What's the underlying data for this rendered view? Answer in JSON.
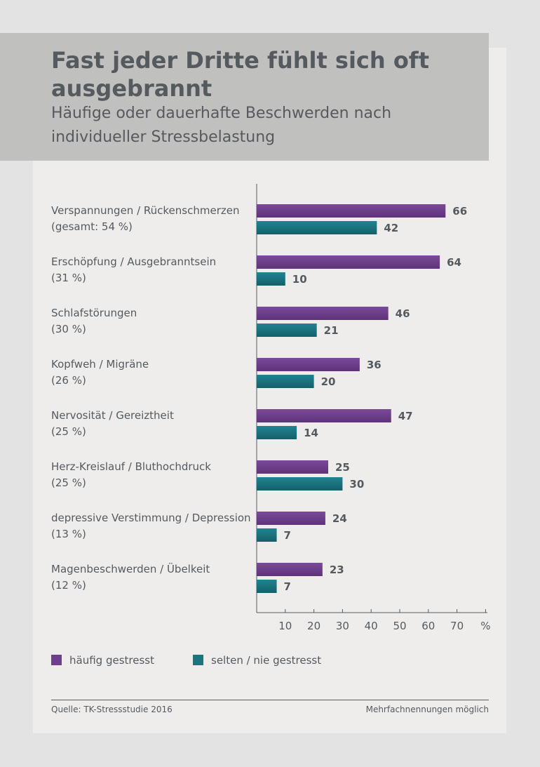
{
  "title": "Fast jeder Dritte fühlt sich oft ausgebrannt",
  "subtitle": "Häufige oder dauerhafte Beschwerden nach individueller Stressbelastung",
  "chart_data": {
    "type": "bar",
    "orientation": "horizontal",
    "categories": [
      {
        "label": "Verspannungen / Rückenschmerzen",
        "sublabel": "(gesamt: 54 %)"
      },
      {
        "label": "Erschöpfung / Ausgebranntsein",
        "sublabel": "(31 %)"
      },
      {
        "label": "Schlafstörungen",
        "sublabel": "(30 %)"
      },
      {
        "label": "Kopfweh / Migräne",
        "sublabel": "(26 %)"
      },
      {
        "label": "Nervosität / Gereiztheit",
        "sublabel": "(25 %)"
      },
      {
        "label": "Herz-Kreislauf / Bluthochdruck",
        "sublabel": "(25 %)"
      },
      {
        "label": "depressive Verstimmung / Depression",
        "sublabel": "(13 %)"
      },
      {
        "label": "Magenbeschwerden / Übelkeit",
        "sublabel": "(12 %)"
      }
    ],
    "series": [
      {
        "name": "häufig gestresst",
        "color": "#6f3f8f",
        "values": [
          66,
          64,
          46,
          36,
          47,
          25,
          24,
          23
        ]
      },
      {
        "name": "selten / nie gestresst",
        "color": "#1b7581",
        "values": [
          42,
          10,
          21,
          20,
          14,
          30,
          7,
          7
        ]
      }
    ],
    "xlim": [
      0,
      80
    ],
    "ticks": [
      "10",
      "20",
      "30",
      "40",
      "50",
      "60",
      "70",
      "%"
    ],
    "legend_position": "bottom-left"
  },
  "footer": {
    "source": "Quelle: TK-Stressstudie 2016",
    "note": "Mehrfachnennungen möglich"
  }
}
